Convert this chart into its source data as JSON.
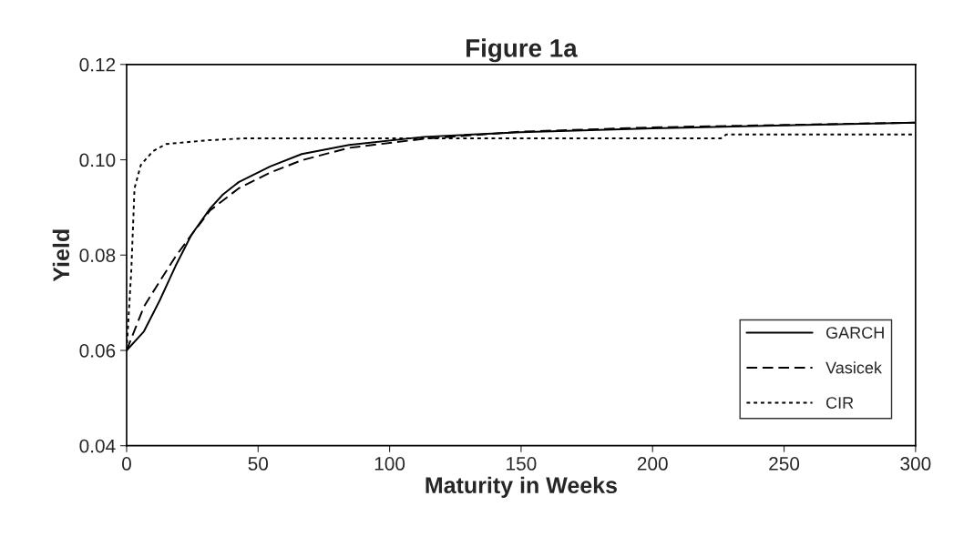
{
  "chart_data": {
    "type": "line",
    "title": "Figure 1a",
    "xlabel": "Maturity in Weeks",
    "ylabel": "Yield",
    "xlim": [
      0,
      300
    ],
    "xticks": [
      0,
      50,
      100,
      150,
      200,
      250,
      300
    ],
    "ylim": [
      0.04,
      0.12
    ],
    "yticks": [
      0.04,
      0.06,
      0.08,
      {
        "value": 0.1,
        "label": "0.10"
      },
      0.12
    ],
    "grid": false,
    "legend": "bottom right",
    "marker": "none",
    "series": [
      {
        "name": "GARCH",
        "color": "#000000",
        "line_style": "solid",
        "x": [
          0,
          6.6,
          12.6,
          18.6,
          24.6,
          31.8,
          36.6,
          42.6,
          54.6,
          66.6,
          84.6,
          113,
          150,
          200,
          250,
          300
        ],
        "values": [
          0.06,
          0.064,
          0.0705,
          0.0777,
          0.0842,
          0.0898,
          0.0927,
          0.0953,
          0.0986,
          0.1012,
          0.1031,
          0.1048,
          0.1058,
          0.1066,
          0.1072,
          0.1078
        ]
      },
      {
        "name": "Vasicek",
        "color": "#000000",
        "line_style": "dashed",
        "x": [
          0,
          6.6,
          12.6,
          18.6,
          24.6,
          31.8,
          42.6,
          54.6,
          66.6,
          84.6,
          113,
          150,
          200,
          250,
          300
        ],
        "values": [
          0.06,
          0.0692,
          0.0745,
          0.0797,
          0.0842,
          0.0894,
          0.094,
          0.0973,
          0.0999,
          0.1025,
          0.1044,
          0.1059,
          0.1068,
          0.1073,
          0.1078
        ]
      },
      {
        "name": "CIR",
        "color": "#000000",
        "line_style": "dotted",
        "x": [
          0,
          1.8,
          3,
          5.4,
          10,
          15,
          31,
          45,
          100,
          150,
          226,
          228,
          300
        ],
        "values": [
          0.06,
          0.077,
          0.094,
          0.0989,
          0.1018,
          0.1033,
          0.1041,
          0.1045,
          0.1045,
          0.1045,
          0.1045,
          0.1053,
          0.1053
        ]
      }
    ]
  }
}
